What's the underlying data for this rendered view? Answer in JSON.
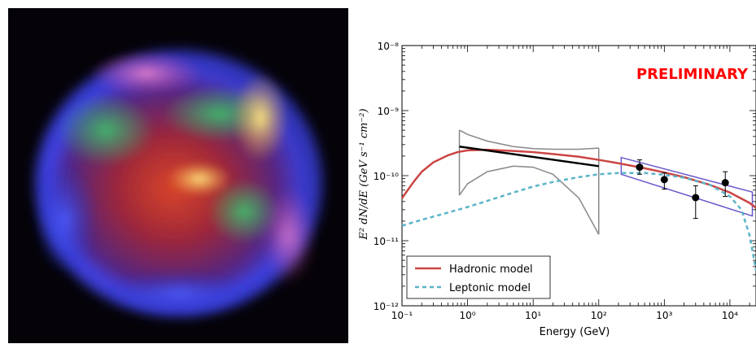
{
  "chart_data": {
    "type": "line",
    "title": "",
    "xlabel": "Energy (GeV)",
    "ylabel": "E² dN/dE (GeV s⁻¹ cm⁻²)",
    "x_scale": "log",
    "y_scale": "log",
    "xlim": [
      0.1,
      25000
    ],
    "ylim": [
      1e-12,
      1e-08
    ],
    "x_ticks": [
      0.1,
      1,
      10,
      100,
      1000,
      10000
    ],
    "x_tick_labels": [
      "10⁻¹",
      "10⁰",
      "10¹",
      "10²",
      "10³",
      "10⁴"
    ],
    "y_ticks": [
      1e-12,
      1e-11,
      1e-10,
      1e-09,
      1e-08
    ],
    "y_tick_labels": [
      "10⁻¹²",
      "10⁻¹¹",
      "10⁻¹⁰",
      "10⁻⁹",
      "10⁻⁸"
    ],
    "annotation": "PRELIMINARY",
    "legend_position": "bottom-left",
    "grid": false,
    "series": [
      {
        "name": "Hadronic model",
        "color": "#cc4444",
        "style": "solid",
        "x": [
          0.1,
          0.15,
          0.2,
          0.3,
          0.5,
          0.7,
          1,
          2,
          5,
          10,
          20,
          50,
          100,
          200,
          500,
          1000,
          2000,
          5000,
          10000,
          20000,
          25000
        ],
        "y": [
          4.5e-11,
          8e-11,
          1.15e-10,
          1.6e-10,
          2.05e-10,
          2.3e-10,
          2.45e-10,
          2.5e-10,
          2.4e-10,
          2.3e-10,
          2.15e-10,
          1.95e-10,
          1.75e-10,
          1.55e-10,
          1.3e-10,
          1.12e-10,
          9.5e-11,
          7.2e-11,
          5.5e-11,
          3.8e-11,
          3.2e-11
        ]
      },
      {
        "name": "Leptonic model",
        "color": "#5ab4c8",
        "style": "dashed",
        "x": [
          0.1,
          0.2,
          0.5,
          1,
          2,
          5,
          10,
          20,
          50,
          100,
          200,
          500,
          1000,
          2000,
          5000,
          10000,
          15000,
          20000,
          25000
        ],
        "y": [
          1.7e-11,
          2.1e-11,
          2.7e-11,
          3.3e-11,
          4.1e-11,
          5.5e-11,
          6.8e-11,
          8e-11,
          9.5e-11,
          1.05e-10,
          1.1e-10,
          1.1e-10,
          1.03e-10,
          9.3e-11,
          7.2e-11,
          4.8e-11,
          3e-11,
          1.2e-11,
          3.5e-12
        ]
      }
    ],
    "powerlaw_fit": {
      "color": "#000000",
      "x": [
        0.75,
        100
      ],
      "y": [
        2.8e-10,
        1.4e-10
      ]
    },
    "low_energy_band": {
      "color": "#888888",
      "x_left": 0.75,
      "x_right": 100,
      "upper_x": [
        0.75,
        1,
        2,
        5,
        10,
        20,
        50,
        100
      ],
      "upper_y": [
        5e-10,
        4.3e-10,
        3.4e-10,
        2.8e-10,
        2.6e-10,
        2.55e-10,
        2.55e-10,
        2.65e-10
      ],
      "lower_x": [
        0.75,
        1,
        2,
        5,
        10,
        20,
        50,
        100
      ],
      "lower_y": [
        5e-11,
        7.5e-11,
        1.15e-10,
        1.4e-10,
        1.35e-10,
        1.05e-10,
        4.5e-11,
        1.25e-11
      ]
    },
    "high_energy_band": {
      "color": "#6a5acd",
      "x": [
        220,
        22000
      ],
      "upper_y": [
        1.9e-10,
        5.6e-11
      ],
      "lower_y": [
        1.05e-10,
        2.4e-11
      ]
    },
    "data_points": {
      "color": "#000000",
      "x": [
        420,
        1000,
        3000,
        8500
      ],
      "y": [
        1.35e-10,
        8.7e-11,
        4.6e-11,
        7.8e-11
      ],
      "y_low": [
        1.05e-10,
        6.2e-11,
        2.2e-11,
        4.8e-11
      ],
      "y_high": [
        1.75e-10,
        1.1e-10,
        7e-11,
        1.15e-10
      ]
    }
  }
}
